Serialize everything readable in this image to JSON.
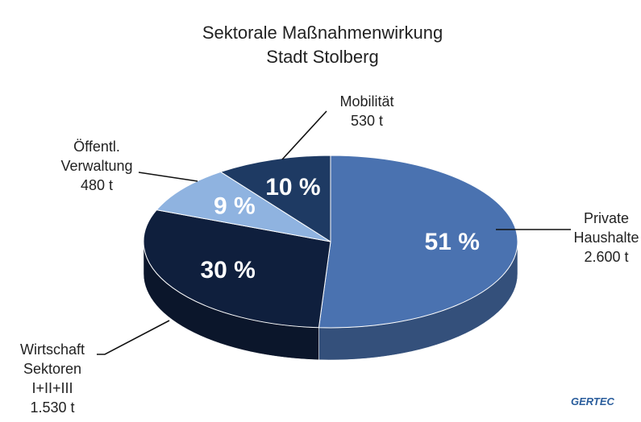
{
  "chart_data": {
    "type": "pie",
    "title": "Sektorale Maßnahmenwirkung",
    "subtitle": "Stadt Stolberg",
    "categories": [
      [
        "Private",
        "Haushalte"
      ],
      [
        "Wirtschaft",
        "Sektoren",
        "I+II+III"
      ],
      [
        "Öffentl.",
        "Verwaltung"
      ],
      [
        "Mobilität"
      ]
    ],
    "values": [
      51,
      30,
      9,
      10
    ],
    "value_labels": [
      "51 %",
      "30 %",
      "9 %",
      "10 %"
    ],
    "amount_labels": [
      "2.600 t",
      "1.530 t",
      "480 t",
      "530 t"
    ],
    "colors": [
      "#4a72b0",
      "#0f1f3d",
      "#8fb3e0",
      "#1e3a63"
    ]
  },
  "logo": "GERTEC"
}
